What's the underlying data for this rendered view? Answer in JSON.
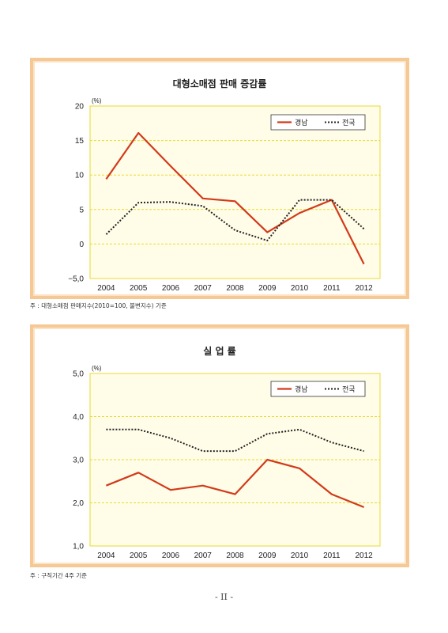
{
  "chart_data": [
    {
      "type": "line",
      "title": "대형소매점 판매 증감률",
      "unit": "(%)",
      "categories": [
        "2004",
        "2005",
        "2006",
        "2007",
        "2008",
        "2009",
        "2010",
        "2011",
        "2012"
      ],
      "ylim": [
        -5,
        20
      ],
      "yticks": [
        -5,
        0,
        5,
        10,
        15,
        20
      ],
      "ytick_labels": [
        "−5,0",
        "0",
        "5",
        "10",
        "15",
        "20"
      ],
      "grid": true,
      "legend_position": "top-right",
      "series": [
        {
          "name": "경남",
          "color": "#d23a1b",
          "style": "solid",
          "values": [
            9.4,
            16.1,
            11.3,
            6.6,
            6.2,
            1.7,
            4.5,
            6.4,
            -2.9
          ]
        },
        {
          "name": "전국",
          "color": "#222222",
          "style": "dotted",
          "values": [
            1.4,
            6.0,
            6.1,
            5.5,
            2.0,
            0.5,
            6.4,
            6.4,
            2.2
          ]
        }
      ]
    },
    {
      "type": "line",
      "title": "실 업 률",
      "unit": "(%)",
      "categories": [
        "2004",
        "2005",
        "2006",
        "2007",
        "2008",
        "2009",
        "2010",
        "2011",
        "2012"
      ],
      "ylim": [
        1.0,
        5.0
      ],
      "yticks": [
        1.0,
        2.0,
        3.0,
        4.0,
        5.0
      ],
      "ytick_labels": [
        "1,0",
        "2,0",
        "3,0",
        "4,0",
        "5,0"
      ],
      "grid": true,
      "legend_position": "top-right",
      "series": [
        {
          "name": "경남",
          "color": "#d23a1b",
          "style": "solid",
          "values": [
            2.4,
            2.7,
            2.3,
            2.4,
            2.2,
            3.0,
            2.8,
            2.2,
            1.9
          ]
        },
        {
          "name": "전국",
          "color": "#222222",
          "style": "dotted",
          "values": [
            3.7,
            3.7,
            3.5,
            3.2,
            3.2,
            3.6,
            3.7,
            3.4,
            3.2
          ]
        }
      ]
    }
  ],
  "notes": [
    "주 : 대형소매점 판매지수(2010=100, 불변지수) 기준",
    "주 : 구직기간 4주 기준"
  ],
  "page_number": "- II -",
  "colors": {
    "frame": "#f5c896",
    "plot_bg": "#fffde8",
    "plot_border": "#e8d930",
    "grid": "#e8d930"
  }
}
